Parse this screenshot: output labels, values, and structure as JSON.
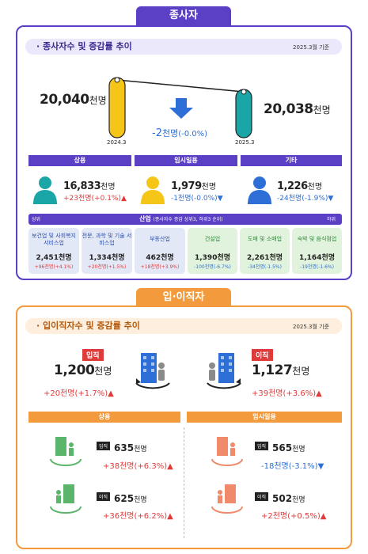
{
  "top": {
    "tab_title": "종사자",
    "subtitle": "종사자수 및 증감률 추이",
    "date_note": "2025.3월 기준",
    "left": {
      "value": "20,040",
      "unit": "천명",
      "period": "2024.3"
    },
    "right": {
      "value": "20,038",
      "unit": "천명",
      "period": "2025.3"
    },
    "change": {
      "value": "-2",
      "unit": "천명",
      "pct": "(-0.0%)"
    },
    "categories": [
      {
        "label": "상용",
        "value": "16,833",
        "unit": "천명",
        "chg_val": "+23",
        "chg_unit": "천명",
        "chg_pct": "(+0.1%)",
        "dir": "up"
      },
      {
        "label": "임시일용",
        "value": "1,979",
        "unit": "천명",
        "chg_val": "-1",
        "chg_unit": "천명",
        "chg_pct": "(-0.0%)",
        "dir": "down"
      },
      {
        "label": "기타",
        "value": "1,226",
        "unit": "천명",
        "chg_val": "-24",
        "chg_unit": "천명",
        "chg_pct": "(-1.9%)",
        "dir": "down"
      }
    ],
    "industry": {
      "title": "산업",
      "title_note": "(종사자수 증감 상위3, 하위3 순위)",
      "left_tag": "상위",
      "right_tag": "하위",
      "items": [
        {
          "name": "보건업 및 사회복지 서비스업",
          "value": "2,451천명",
          "chg": "+96천명(+4.1%)"
        },
        {
          "name": "전문, 과학 및 기술 서비스업",
          "value": "1,334천명",
          "chg": "+20천명(+1.5%)"
        },
        {
          "name": "부동산업",
          "value": "462천명",
          "chg": "+18천명(+3.9%)"
        },
        {
          "name": "건설업",
          "value": "1,390천명",
          "chg": "-100천명(-6.7%)"
        },
        {
          "name": "도매 및 소매업",
          "value": "2,261천명",
          "chg": "-34천명(-1.5%)"
        },
        {
          "name": "숙박 및 음식점업",
          "value": "1,164천명",
          "chg": "-19천명(-1.6%)"
        }
      ]
    },
    "colors": {
      "purple": "#5b3fc4",
      "yellow": "#f5c518",
      "teal": "#1aa6a6",
      "blue": "#2d6fd6",
      "red": "#e03b3b"
    }
  },
  "bottom": {
    "tab_title": "입·이직자",
    "subtitle": "입이직자수 및 증감률 추이",
    "date_note": "2025.3월 기준",
    "hire": {
      "tag": "입직",
      "value": "1,200",
      "unit": "천명",
      "chg_val": "+20",
      "chg_unit": "천명",
      "chg_pct": "(+1.7%)"
    },
    "sep": {
      "tag": "이직",
      "value": "1,127",
      "unit": "천명",
      "chg_val": "+39",
      "chg_unit": "천명",
      "chg_pct": "(+3.6%)"
    },
    "groups": [
      {
        "label": "상용",
        "rows": [
          {
            "tag": "입직",
            "value": "635",
            "unit": "천명",
            "chg_val": "+38",
            "chg_unit": "천명",
            "chg_pct": "(+6.3%)"
          },
          {
            "tag": "이직",
            "value": "625",
            "unit": "천명",
            "chg_val": "+36",
            "chg_unit": "천명",
            "chg_pct": "(+6.2%)"
          }
        ]
      },
      {
        "label": "임시일용",
        "rows": [
          {
            "tag": "입직",
            "value": "565",
            "unit": "천명",
            "chg_val": "-18",
            "chg_unit": "천명",
            "chg_pct": "(-3.1%)"
          },
          {
            "tag": "이직",
            "value": "502",
            "unit": "천명",
            "chg_val": "+2",
            "chg_unit": "천명",
            "chg_pct": "(+0.5%)"
          }
        ]
      }
    ],
    "colors": {
      "orange": "#f39a3c",
      "green": "#5bb56a",
      "salmon": "#f08a6a"
    }
  }
}
